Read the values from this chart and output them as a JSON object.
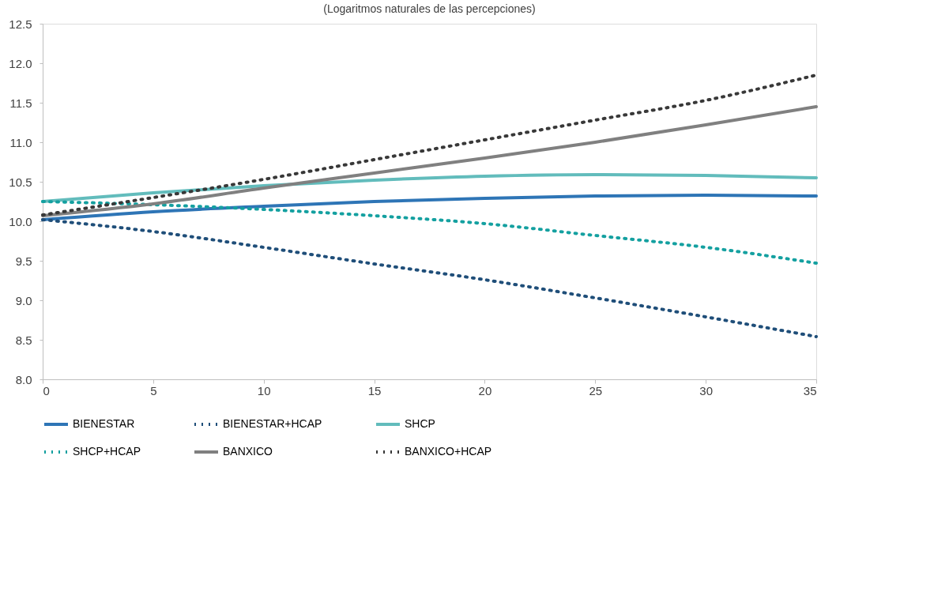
{
  "chart_data": {
    "type": "line",
    "subtitle": "(Logaritmos naturales de las percepciones)",
    "x": [
      0,
      5,
      10,
      15,
      20,
      25,
      30,
      35
    ],
    "series": [
      {
        "name": "BIENESTAR",
        "color": "#2e75b6",
        "line_style": "solid",
        "values": [
          10.02,
          10.12,
          10.19,
          10.25,
          10.29,
          10.32,
          10.33,
          10.32
        ]
      },
      {
        "name": "BIENESTAR+HCAP",
        "color": "#1f4e79",
        "line_style": "dotted",
        "values": [
          10.02,
          9.87,
          9.67,
          9.46,
          9.26,
          9.03,
          8.79,
          8.54
        ]
      },
      {
        "name": "SHCP",
        "color": "#62bcbc",
        "line_style": "solid",
        "values": [
          10.25,
          10.36,
          10.45,
          10.52,
          10.57,
          10.59,
          10.58,
          10.55
        ]
      },
      {
        "name": "SHCP+HCAP",
        "color": "#14a0a0",
        "line_style": "dotted",
        "values": [
          10.25,
          10.21,
          10.15,
          10.07,
          9.97,
          9.82,
          9.67,
          9.47
        ]
      },
      {
        "name": "BANXICO",
        "color": "#808080",
        "line_style": "solid",
        "values": [
          10.07,
          10.22,
          10.42,
          10.61,
          10.8,
          11.0,
          11.22,
          11.45
        ]
      },
      {
        "name": "BANXICO+HCAP",
        "color": "#383838",
        "line_style": "dotted",
        "values": [
          10.08,
          10.3,
          10.53,
          10.78,
          11.03,
          11.28,
          11.53,
          11.85
        ]
      }
    ],
    "xlim": [
      0,
      35
    ],
    "xticks": [
      0,
      5,
      10,
      15,
      20,
      25,
      30,
      35
    ],
    "ylim": [
      8.0,
      12.5
    ],
    "yticks": [
      {
        "value": 8.0,
        "label": "8.0"
      },
      {
        "value": 8.5,
        "label": "8.5"
      },
      {
        "value": 9.0,
        "label": "9.0"
      },
      {
        "value": 9.5,
        "label": "9.5"
      },
      {
        "value": 10.0,
        "label": "10.0"
      },
      {
        "value": 10.5,
        "label": "10.5"
      },
      {
        "value": 11.0,
        "label": "11.0"
      },
      {
        "value": 11.5,
        "label": "11.5"
      },
      {
        "value": 12.0,
        "label": "12.0"
      },
      {
        "value": 12.5,
        "label": "12.5"
      }
    ],
    "grid": false,
    "legend": "bottom"
  }
}
